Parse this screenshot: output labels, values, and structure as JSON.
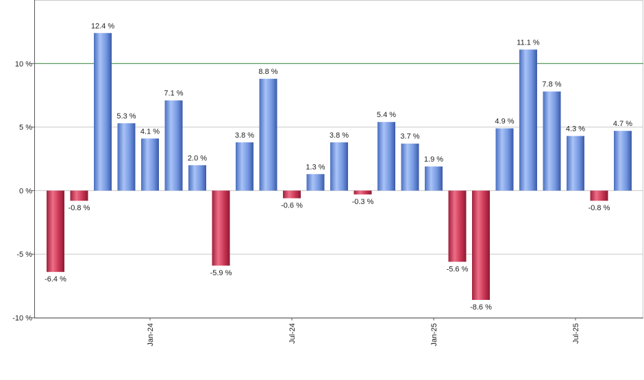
{
  "chart_data": {
    "type": "bar",
    "title": "",
    "xlabel": "",
    "ylabel": "",
    "ylim": [
      -10,
      15
    ],
    "y_ticks": [
      -10,
      -5,
      0,
      5,
      10
    ],
    "y_tick_suffix": " %",
    "value_label_suffix": " %",
    "grid": true,
    "reference_line": {
      "value": 10,
      "color": "#2e7d32"
    },
    "x_tick_labels": [
      {
        "index": 4,
        "label": "Jan-24"
      },
      {
        "index": 10,
        "label": "Jul-24"
      },
      {
        "index": 16,
        "label": "Jan-25"
      },
      {
        "index": 22,
        "label": "Jul-25"
      }
    ],
    "values": [
      -6.4,
      -0.8,
      12.4,
      5.3,
      4.1,
      7.1,
      2.0,
      -5.9,
      3.8,
      8.8,
      -0.6,
      1.3,
      3.8,
      -0.3,
      5.4,
      3.7,
      1.9,
      -5.6,
      -8.6,
      4.9,
      11.1,
      7.8,
      4.3,
      -0.8,
      4.7
    ],
    "value_labels": [
      "-6.4 %",
      "-0.8 %",
      "12.4 %",
      "5.3 %",
      "4.1 %",
      "7.1 %",
      "2.0 %",
      "-5.9 %",
      "3.8 %",
      "8.8 %",
      "-0.6 %",
      "1.3 %",
      "3.8 %",
      "-0.3 %",
      "5.4 %",
      "3.7 %",
      "1.9 %",
      "-5.6 %",
      "-8.6 %",
      "4.9 %",
      "11.1 %",
      "7.8 %",
      "4.3 %",
      "-0.8 %",
      "4.7 %"
    ],
    "colors": {
      "positive": "#7a9ee6",
      "negative": "#d0405e"
    }
  }
}
